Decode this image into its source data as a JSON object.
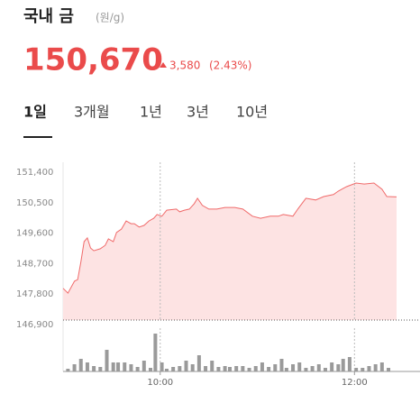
{
  "header": {
    "title": "국내 금",
    "unit": "(원/g)",
    "price": "150,670",
    "change": "3,580",
    "change_pct": "(2.43%)"
  },
  "tabs": [
    "1일",
    "3개월",
    "1년",
    "3년",
    "10년"
  ],
  "chart_data": [
    {
      "type": "area",
      "color": "#f06a6a",
      "fill": "#fde3e3",
      "x": [
        540,
        543,
        547,
        549,
        551,
        553,
        555,
        557,
        559,
        563,
        566,
        568,
        571,
        573,
        576,
        579,
        582,
        584,
        587,
        590,
        593,
        596,
        598,
        601,
        604,
        610,
        612,
        615,
        618,
        621,
        623,
        626,
        630,
        635,
        640,
        646,
        651,
        657,
        662,
        668,
        673,
        676,
        682,
        685,
        690,
        696,
        701,
        707,
        710,
        715,
        721,
        726,
        732,
        737,
        740,
        746
      ],
      "values": [
        147970,
        147830,
        148180,
        148230,
        148760,
        149350,
        149460,
        149160,
        149080,
        149140,
        149240,
        149430,
        149350,
        149620,
        149720,
        149960,
        149880,
        149880,
        149780,
        149830,
        149960,
        150040,
        150150,
        150100,
        150280,
        150310,
        150230,
        150280,
        150310,
        150470,
        150630,
        150420,
        150310,
        150310,
        150360,
        150360,
        150310,
        150100,
        150040,
        150100,
        150100,
        150150,
        150100,
        150310,
        150630,
        150580,
        150680,
        150740,
        150840,
        150970,
        151080,
        151050,
        151080,
        150900,
        150680,
        150670
      ],
      "xlim": [
        540,
        746
      ],
      "ylim": [
        146900,
        151400
      ],
      "yticks": [
        {
          "value": 151400,
          "label": "151,400"
        },
        {
          "value": 150500,
          "label": "150,500"
        },
        {
          "value": 149600,
          "label": "149,600"
        },
        {
          "value": 148700,
          "label": "148,700"
        },
        {
          "value": 147800,
          "label": "147,800"
        },
        {
          "value": 146900,
          "label": "146,900"
        }
      ]
    },
    {
      "type": "bar",
      "color": "#9a9a9a",
      "x": [
        543,
        547,
        551,
        555,
        559,
        563,
        567,
        571,
        574,
        578,
        582,
        586,
        590,
        594,
        597,
        601,
        604,
        608,
        612,
        616,
        620,
        624,
        628,
        632,
        636,
        640,
        643,
        647,
        651,
        655,
        659,
        663,
        667,
        671,
        675,
        678,
        682,
        686,
        690,
        694,
        698,
        702,
        706,
        710,
        713,
        717,
        721,
        725,
        729,
        733,
        737,
        741
      ],
      "values": [
        3,
        8,
        14,
        10,
        6,
        5,
        24,
        10,
        10,
        10,
        8,
        5,
        12,
        4,
        42,
        10,
        3,
        5,
        6,
        12,
        8,
        18,
        6,
        12,
        5,
        6,
        5,
        6,
        6,
        4,
        6,
        10,
        5,
        8,
        14,
        4,
        8,
        10,
        4,
        6,
        8,
        4,
        10,
        8,
        14,
        16,
        4,
        4,
        6,
        8,
        10,
        4
      ],
      "xlim": [
        540,
        746
      ],
      "ylim": [
        0,
        42
      ],
      "xticks": [
        {
          "value": 600,
          "label": "10:00"
        },
        {
          "value": 720,
          "label": "12:00"
        }
      ]
    }
  ]
}
